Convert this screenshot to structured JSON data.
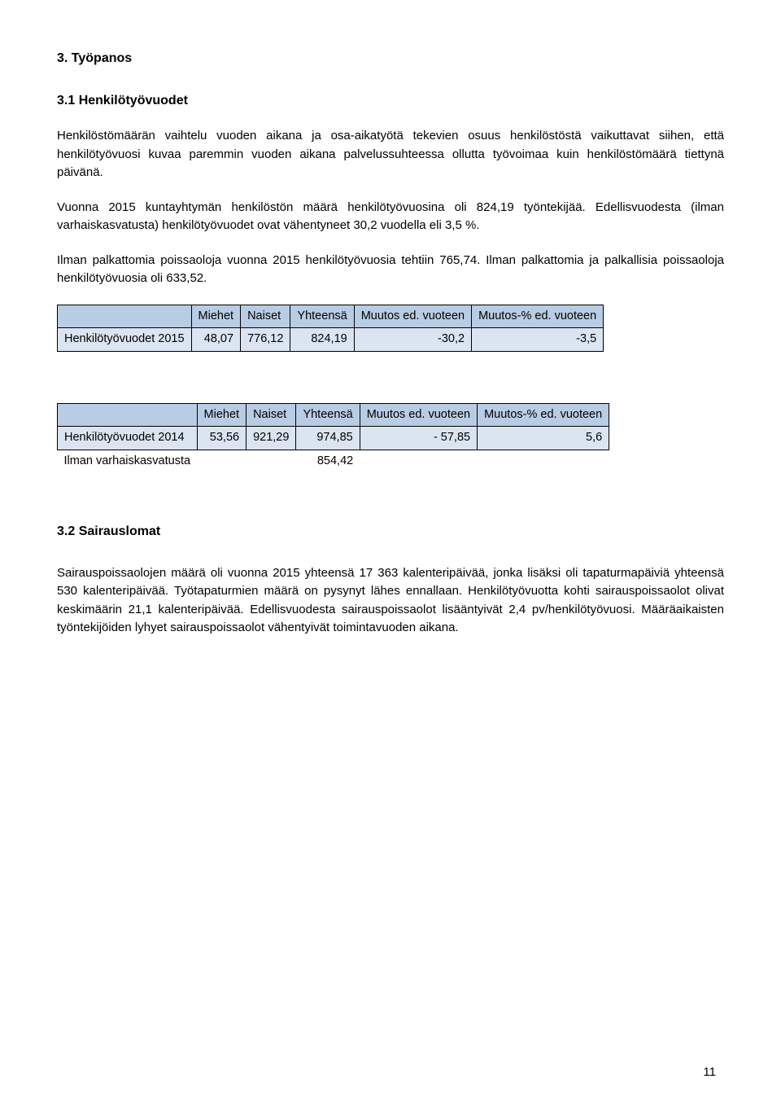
{
  "heading1": "3. Työpanos",
  "subheading1": "3.1 Henkilötyövuodet",
  "para1": "Henkilöstömäärän vaihtelu vuoden aikana ja osa-aikatyötä tekevien osuus henkilöstöstä vaikuttavat siihen, että henkilötyövuosi kuvaa paremmin vuoden aikana palvelussuhteessa ollutta työvoimaa kuin henkilöstömäärä tiettynä päivänä.",
  "para2": "Vuonna 2015 kuntayhtymän henkilöstön määrä henkilötyövuosina oli 824,19 työntekijää. Edellisvuodesta (ilman varhaiskasvatusta) henkilötyövuodet ovat vähentyneet 30,2 vuodella eli 3,5 %.",
  "para3": "Ilman palkattomia poissaoloja vuonna 2015 henkilötyövuosia tehtiin 765,74. Ilman palkattomia ja palkallisia poissaoloja henkilötyövuosia oli 633,52.",
  "table1": {
    "headers": [
      "",
      "Miehet",
      "Naiset",
      "Yhteensä",
      "Muutos ed. vuoteen",
      "Muutos-% ed. vuoteen"
    ],
    "row_label": "Henkilötyövuodet 2015",
    "values": [
      "48,07",
      "776,12",
      "824,19",
      "-30,2",
      "-3,5"
    ]
  },
  "table2": {
    "headers": [
      "",
      "Miehet",
      "Naiset",
      "Yhteensä",
      "Muutos ed. vuoteen",
      "Muutos-% ed. vuoteen"
    ],
    "row_label": "Henkilötyövuodet 2014",
    "values": [
      "53,56",
      "921,29",
      "974,85",
      "- 57,85",
      "5,6"
    ],
    "extra_label": "Ilman varhaiskasvatusta",
    "extra_value": "854,42"
  },
  "subheading2": "3.2 Sairauslomat",
  "para4": "Sairauspoissaolojen määrä oli vuonna 2015 yhteensä 17 363 kalenteripäivää, jonka lisäksi oli tapaturmapäiviä yhteensä 530 kalenteripäivää. Työtapaturmien määrä on pysynyt lähes ennallaan. Henkilötyövuotta kohti sairauspoissaolot olivat keskimäärin 21,1 kalenteripäivää. Edellisvuodesta sairauspoissaolot lisääntyivät 2,4 pv/henkilötyövuosi. Määräaikaisten työntekijöiden lyhyet sairauspoissaolot vähentyivät toimintavuoden aikana.",
  "page_number": "11",
  "colors": {
    "header_bg": "#b8cce4",
    "data_bg": "#dbe5f1"
  }
}
